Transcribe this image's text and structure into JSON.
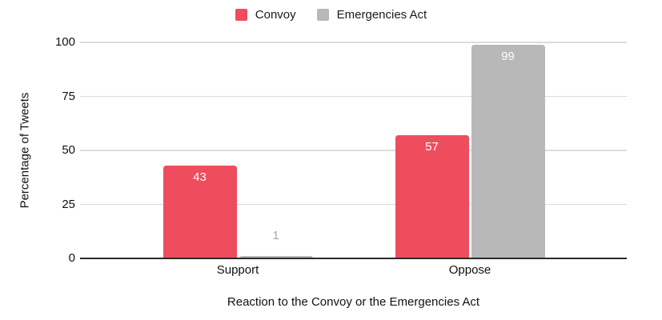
{
  "chart_data": {
    "type": "bar",
    "categories": [
      "Support",
      "Oppose"
    ],
    "series": [
      {
        "name": "Convoy",
        "color": "#EE4D5E",
        "values": [
          43,
          57
        ]
      },
      {
        "name": "Emergencies Act",
        "color": "#B8B8B8",
        "values": [
          1,
          99
        ]
      }
    ],
    "xlabel": "Reaction to the Convoy or the Emergencies Act",
    "ylabel": "Percentage of Tweets",
    "ylim": [
      0,
      100
    ],
    "yticks": [
      0,
      25,
      50,
      75,
      100
    ],
    "grid": true,
    "legend_position": "top",
    "data_labels": true
  },
  "colors": {
    "grid": "#dcdcdc",
    "axis": "#2b2b2b",
    "label_inside": "#ffffff",
    "label_outside": "#a8a8a8",
    "text": "#111111"
  }
}
